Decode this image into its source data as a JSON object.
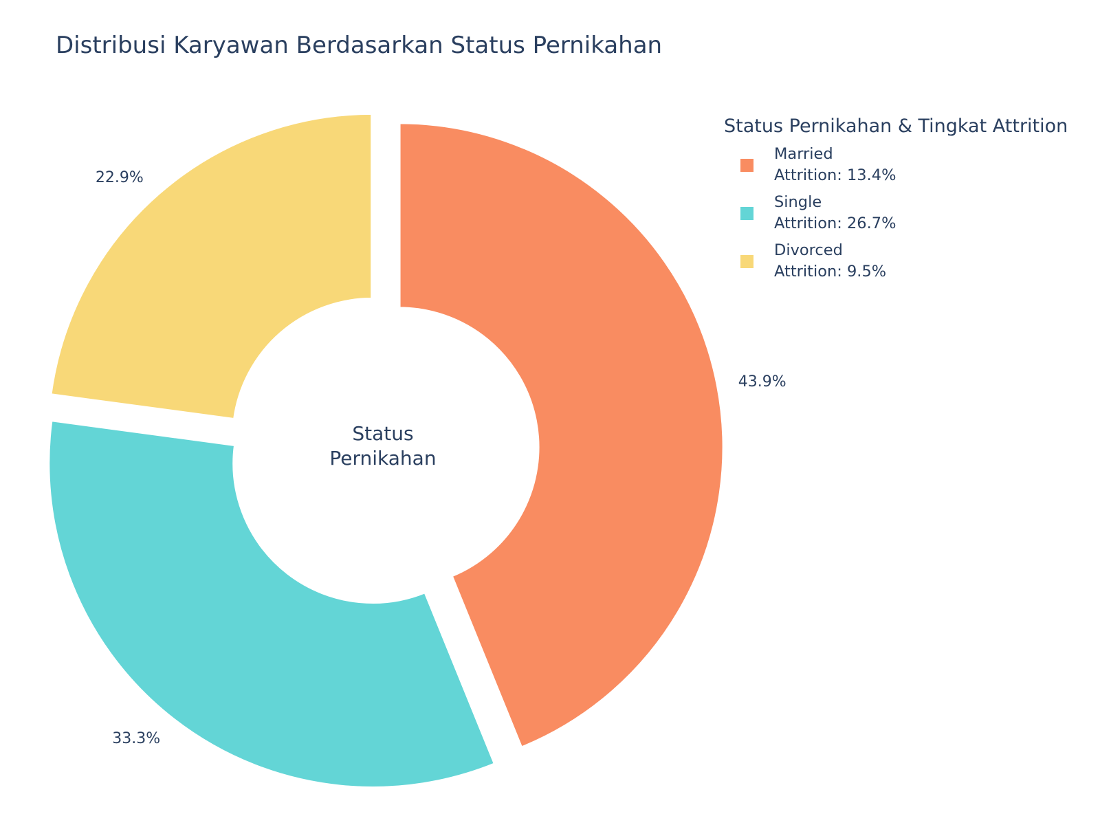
{
  "chart_data": {
    "type": "pie",
    "title": "Distribusi Karyawan Berdasarkan Status Pernikahan",
    "center_label": [
      "Status",
      "Pernikahan"
    ],
    "legend_title": "Status Pernikahan & Tingkat Attrition",
    "legend_placement": "top-right",
    "slices": [
      {
        "name": "Married",
        "value": 43.9,
        "value_label": "43.9%",
        "attrition_label": "Attrition: 13.4%",
        "color": "#f98c61"
      },
      {
        "name": "Single",
        "value": 33.3,
        "value_label": "33.3%",
        "attrition_label": "Attrition: 26.7%",
        "color": "#63d5d6"
      },
      {
        "name": "Divorced",
        "value": 22.9,
        "value_label": "22.9%",
        "attrition_label": "Attrition: 9.5%",
        "color": "#f8d878"
      }
    ]
  }
}
